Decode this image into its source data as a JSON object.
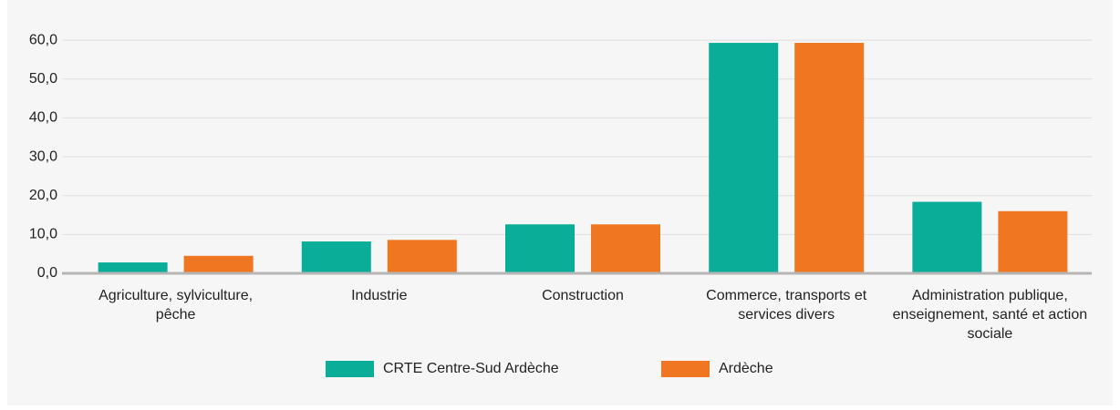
{
  "chart_data": {
    "type": "bar",
    "categories": [
      "Agriculture, sylviculture, pêche",
      "Industrie",
      "Construction",
      "Commerce, transports et services divers",
      "Administration publique, enseignement, santé et action sociale"
    ],
    "series": [
      {
        "name": "CRTE Centre-Sud Ardèche",
        "color": "#0aae98",
        "values": [
          2.8,
          8.2,
          12.6,
          59.3,
          18.4
        ]
      },
      {
        "name": "Ardèche",
        "color": "#f07621",
        "values": [
          4.5,
          8.6,
          12.6,
          59.3,
          16.0
        ]
      }
    ],
    "ylim": [
      0,
      64
    ],
    "yticks": [
      {
        "value": 0,
        "label": "0,0"
      },
      {
        "value": 10,
        "label": "10,0"
      },
      {
        "value": 20,
        "label": "20,0"
      },
      {
        "value": 30,
        "label": "30,0"
      },
      {
        "value": 40,
        "label": "40,0"
      },
      {
        "value": 50,
        "label": "50,0"
      },
      {
        "value": 60,
        "label": "60,0"
      }
    ],
    "grid": true,
    "legend": "bottom"
  }
}
